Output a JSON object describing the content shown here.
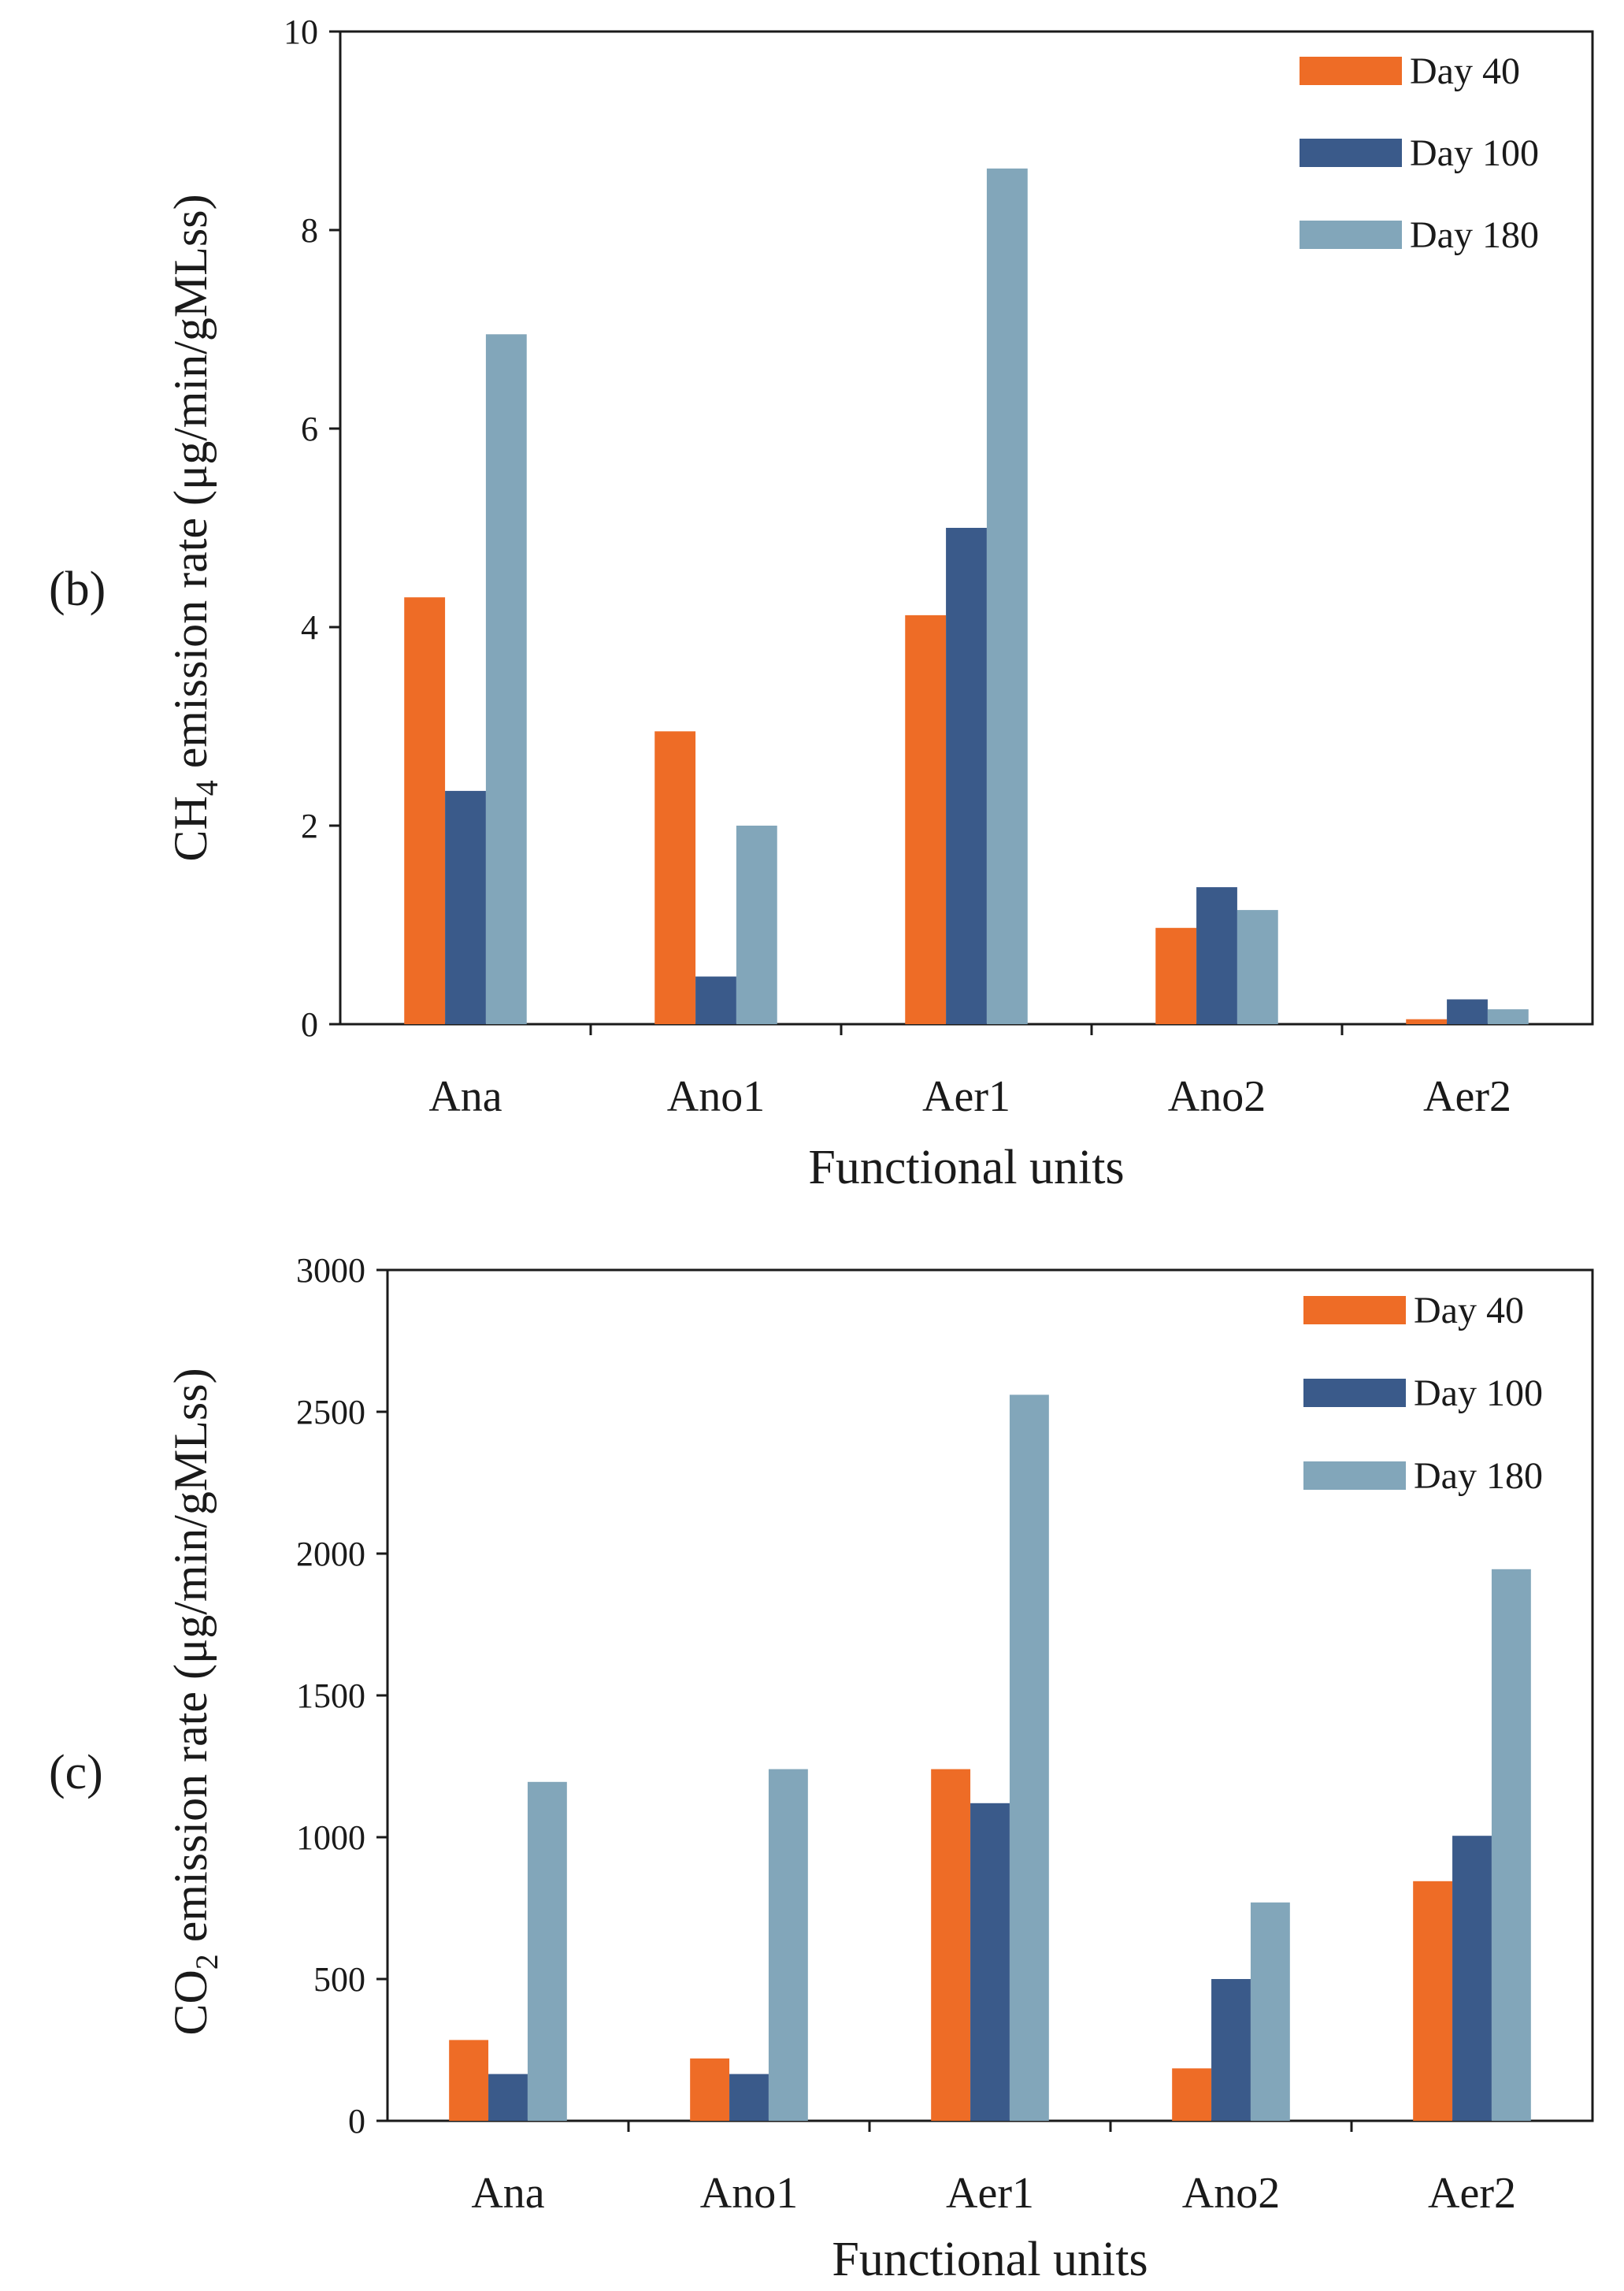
{
  "chart_data": [
    {
      "panel_label": "(b)",
      "type": "bar",
      "title": "",
      "ylabel_parts": [
        "CH",
        "4",
        " emission rate (μg/min/gMLss)"
      ],
      "xlabel": "Functional units",
      "categories": [
        "Ana",
        "Ano1",
        "Aer1",
        "Ano2",
        "Aer2"
      ],
      "ylim": [
        0,
        10
      ],
      "yticks": [
        0,
        2,
        4,
        6,
        8,
        10
      ],
      "legend_position": "top-right",
      "series": [
        {
          "name": "Day 40",
          "color": "#EE6C26",
          "values": [
            4.3,
            2.95,
            4.12,
            0.97,
            0.05
          ]
        },
        {
          "name": "Day 100",
          "color": "#3A5A8A",
          "values": [
            2.35,
            0.48,
            5.0,
            1.38,
            0.25
          ]
        },
        {
          "name": "Day 180",
          "color": "#82A6BA",
          "values": [
            6.95,
            2.0,
            8.62,
            1.15,
            0.15
          ]
        }
      ]
    },
    {
      "panel_label": "(c)",
      "type": "bar",
      "title": "",
      "ylabel_parts": [
        "CO",
        "2",
        " emission rate (μg/min/gMLss)"
      ],
      "xlabel": "Functional units",
      "categories": [
        "Ana",
        "Ano1",
        "Aer1",
        "Ano2",
        "Aer2"
      ],
      "ylim": [
        0,
        3000
      ],
      "yticks": [
        0,
        500,
        1000,
        1500,
        2000,
        2500,
        3000
      ],
      "legend_position": "top-right",
      "series": [
        {
          "name": "Day 40",
          "color": "#EE6C26",
          "values": [
            285,
            220,
            1240,
            185,
            845
          ]
        },
        {
          "name": "Day 100",
          "color": "#3A5A8A",
          "values": [
            165,
            165,
            1120,
            500,
            1005
          ]
        },
        {
          "name": "Day 180",
          "color": "#82A6BA",
          "values": [
            1195,
            1240,
            2560,
            770,
            1945
          ]
        }
      ]
    }
  ]
}
